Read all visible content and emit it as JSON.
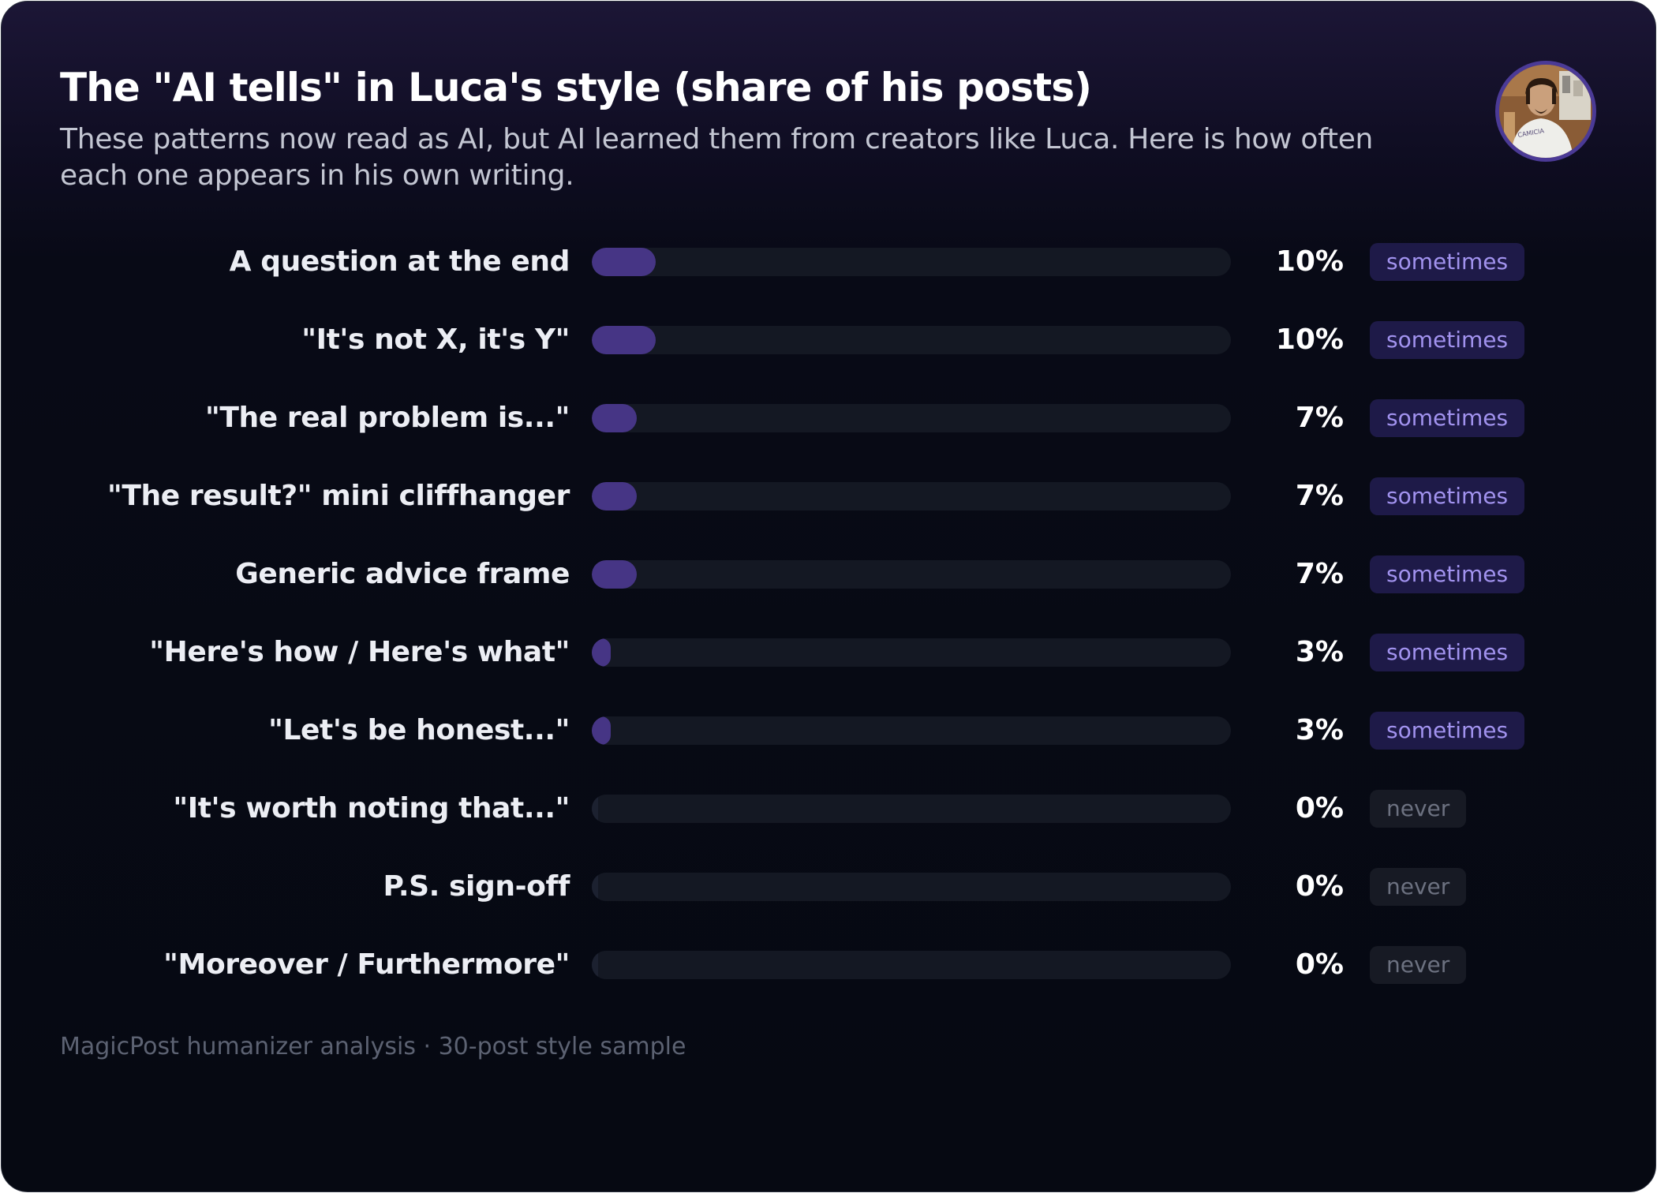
{
  "title": "The \"AI tells\" in Luca's style (share of his posts)",
  "subtitle": "These patterns now read as AI, but AI learned them from creators like Luca. Here is how often each one appears in his own writing.",
  "footer": "MagicPost humanizer analysis · 30-post style sample",
  "avatar": {
    "shirt_text": "CAMICIA"
  },
  "colors": {
    "bar_fill": "#463585",
    "bar_track": "#141823",
    "badge_sometimes_bg": "#1e1a48",
    "badge_sometimes_text": "#a293ef",
    "badge_never_bg": "#171a24",
    "badge_never_text": "#6c7180"
  },
  "chart_data": {
    "type": "bar",
    "orientation": "horizontal",
    "title": "The \"AI tells\" in Luca's style (share of his posts)",
    "xlim": [
      0,
      100
    ],
    "unit": "%",
    "categories": [
      "A question at the end",
      "\"It's not X, it's Y\"",
      "\"The real problem is...\"",
      "\"The result?\" mini cliffhanger",
      "Generic advice frame",
      "\"Here's how / Here's what\"",
      "\"Let's be honest...\"",
      "\"It's worth noting that...\"",
      "P.S. sign-off",
      "\"Moreover / Furthermore\""
    ],
    "values": [
      10,
      10,
      7,
      7,
      7,
      3,
      3,
      0,
      0,
      0
    ],
    "value_labels": [
      "10%",
      "10%",
      "7%",
      "7%",
      "7%",
      "3%",
      "3%",
      "0%",
      "0%",
      "0%"
    ],
    "frequency_labels": [
      "sometimes",
      "sometimes",
      "sometimes",
      "sometimes",
      "sometimes",
      "sometimes",
      "sometimes",
      "never",
      "never",
      "never"
    ]
  }
}
